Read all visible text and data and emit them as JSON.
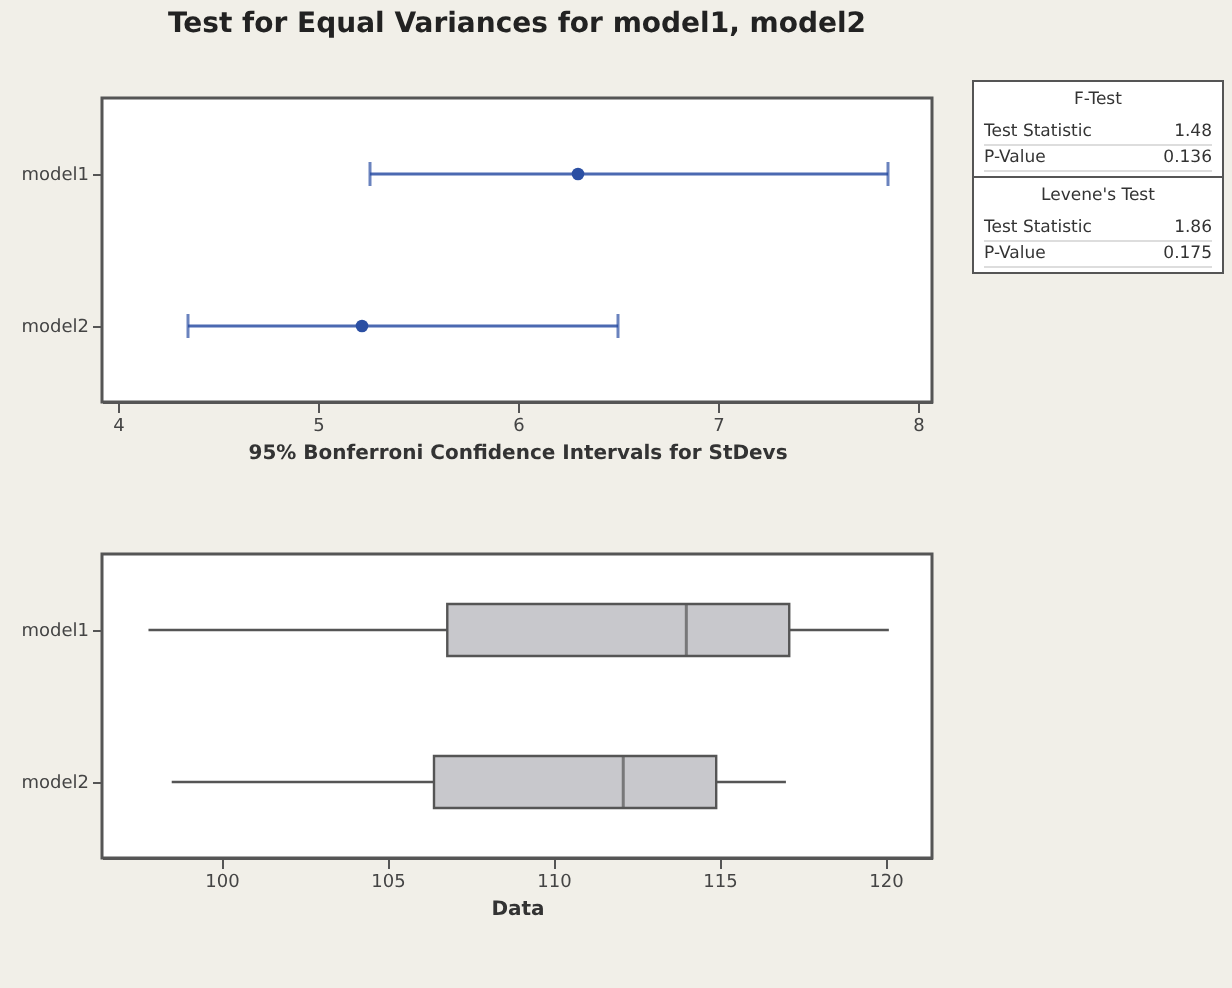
{
  "chart_data": [
    {
      "type": "scatter",
      "title": "Test for Equal Variances for model1, model2",
      "orientation": "horizontal",
      "categories": [
        "model1",
        "model2"
      ],
      "values": [
        6.3,
        5.22
      ],
      "errors": [
        [
          5.26,
          7.85
        ],
        [
          4.35,
          6.5
        ]
      ],
      "color": "#2b4fa3",
      "marker": "circle",
      "xlim": [
        3.92,
        8.07
      ],
      "xticks": [
        4,
        5,
        6,
        7,
        8
      ],
      "xlabel": "95% Bonferroni Confidence Intervals for StDevs"
    },
    {
      "type": "other",
      "annotations": [
        "F-Test",
        "Test Statistic",
        "1.48",
        "P-Value",
        "0.136",
        "Levene's Test",
        "Test Statistic",
        "1.86",
        "P-Value",
        "0.175"
      ]
    },
    {
      "type": "box",
      "orientation": "horizontal",
      "categories": [
        "model1",
        "model2"
      ],
      "color": "#c8c8cc",
      "boxes": [
        {
          "low": 97.8,
          "q1": 106.8,
          "median": 114.0,
          "q3": 117.1,
          "high": 120.1
        },
        {
          "low": 98.5,
          "q1": 106.4,
          "median": 112.1,
          "q3": 114.9,
          "high": 117.0
        }
      ],
      "xlim": [
        96.4,
        121.4
      ],
      "xticks": [
        100,
        105,
        110,
        115,
        120
      ],
      "xlabel": "Data"
    }
  ]
}
